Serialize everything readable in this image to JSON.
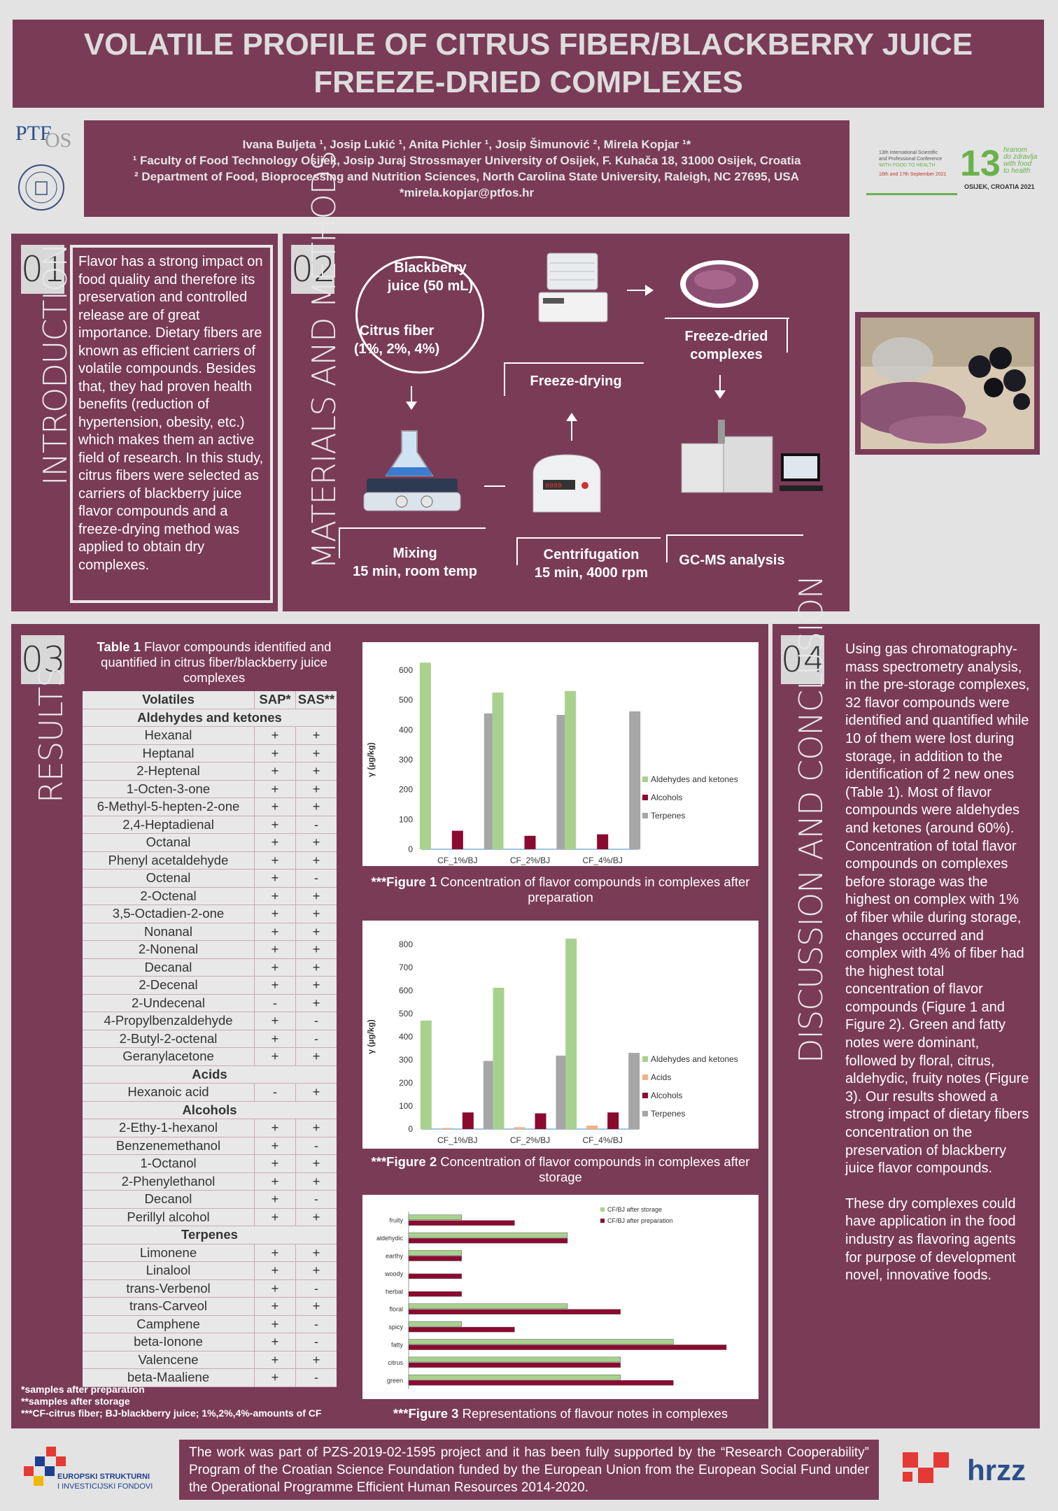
{
  "title": {
    "line1": "VOLATILE PROFILE OF CITRUS FIBER/BLACKBERRY JUICE",
    "line2": "FREEZE-DRIED COMPLEXES"
  },
  "authors": {
    "names": "Ivana Buljeta ¹, Josip Lukić ¹, Anita Pichler ¹, Josip Šimunović ², Mirela Kopjar ¹*",
    "aff1": "¹ Faculty of Food Technology Osijek, Josip Juraj Strossmayer University of Osijek, F. Kuhača 18, 31000 Osijek, Croatia",
    "aff2": "² Department of Food, Bioprocessing and Nutrition Sciences, North Carolina State University, Raleigh, NC 27695, USA",
    "email": "*mirela.kopjar@ptfos.hr"
  },
  "logos": {
    "ptf": "PTF",
    "ptf_os": "OS",
    "conf_line1": "13th International Scientific",
    "conf_line2": "and Professional Conference",
    "conf_line3": "WITH FOOD TO HEALTH",
    "conf_dates": "16th and 17th September 2021",
    "conf_num": "13",
    "conf_hr1": "hranom",
    "conf_hr2": "do zdravlja",
    "conf_en1": "with food",
    "conf_en2": "to health",
    "conf_place": "OSIJEK, CROATIA 2021",
    "eu_line1": "EUROPSKI STRUKTURNI",
    "eu_line2": "I INVESTICIJSKI FONDOVI",
    "hrzz": "hrzz"
  },
  "intro": {
    "num": "01",
    "heading": "INTRODUCTION",
    "text": "Flavor has a strong impact on food quality and therefore its preservation and controlled release are of great importance. Dietary fibers are known as efficient carriers of volatile compounds. Besides that, they had proven health benefits (reduction of hypertension, obesity, etc.) which makes them an active field of research. In this study, citrus fibers were selected as carriers of blackberry juice flavor compounds and a freeze-drying method was applied to obtain dry complexes."
  },
  "methods": {
    "num": "02",
    "heading": "MATERIALS AND METHODS",
    "juice": "Blackberry juice (50 mL)",
    "fiber": "Citrus fiber (1%, 2%, 4%)",
    "freeze": "Freeze-drying",
    "complexes": "Freeze-dried complexes",
    "mixing": "Mixing",
    "mixing2": "15 min, room temp",
    "centri": "Centrifugation",
    "centri2": "15 min, 4000 rpm",
    "gcms": "GC-MS analysis"
  },
  "results": {
    "num": "03",
    "heading": "RESULTS",
    "table_caption_bold": "Table 1",
    "table_caption": " Flavor compounds identified and quantified in citrus fiber/blackberry juice complexes",
    "col_volatiles": "Volatiles",
    "col_sap": "SAP*",
    "col_sas": "SAS**",
    "groups": [
      {
        "name": "Aldehydes and ketones",
        "rows": [
          [
            "Hexanal",
            "+",
            "+"
          ],
          [
            "Heptanal",
            "+",
            "+"
          ],
          [
            "2-Heptenal",
            "+",
            "+"
          ],
          [
            "1-Octen-3-one",
            "+",
            "+"
          ],
          [
            "6-Methyl-5-hepten-2-one",
            "+",
            "+"
          ],
          [
            "2,4-Heptadienal",
            "+",
            "-"
          ],
          [
            "Octanal",
            "+",
            "+"
          ],
          [
            "Phenyl acetaldehyde",
            "+",
            "+"
          ],
          [
            "Octenal",
            "+",
            "-"
          ],
          [
            "2-Octenal",
            "+",
            "+"
          ],
          [
            "3,5-Octadien-2-one",
            "+",
            "+"
          ],
          [
            "Nonanal",
            "+",
            "+"
          ],
          [
            "2-Nonenal",
            "+",
            "+"
          ],
          [
            "Decanal",
            "+",
            "+"
          ],
          [
            "2-Decenal",
            "+",
            "+"
          ],
          [
            "2-Undecenal",
            "-",
            "+"
          ],
          [
            "4-Propylbenzaldehyde",
            "+",
            "-"
          ],
          [
            "2-Butyl-2-octenal",
            "+",
            "-"
          ],
          [
            "Geranylacetone",
            "+",
            "+"
          ]
        ]
      },
      {
        "name": "Acids",
        "rows": [
          [
            "Hexanoic acid",
            "-",
            "+"
          ]
        ]
      },
      {
        "name": "Alcohols",
        "rows": [
          [
            "2-Ethy-1-hexanol",
            "+",
            "+"
          ],
          [
            "Benzenemethanol",
            "+",
            "-"
          ],
          [
            "1-Octanol",
            "+",
            "+"
          ],
          [
            "2-Phenylethanol",
            "+",
            "+"
          ],
          [
            "Decanol",
            "+",
            "-"
          ],
          [
            "Perillyl alcohol",
            "+",
            "+"
          ]
        ]
      },
      {
        "name": "Terpenes",
        "rows": [
          [
            "Limonene",
            "+",
            "+"
          ],
          [
            "Linalool",
            "+",
            "+"
          ],
          [
            "trans-Verbenol",
            "+",
            "-"
          ],
          [
            "trans-Carveol",
            "+",
            "+"
          ],
          [
            "Camphene",
            "+",
            "-"
          ],
          [
            "beta-Ionone",
            "+",
            "-"
          ],
          [
            "Valencene",
            "+",
            "+"
          ],
          [
            "beta-Maaliene",
            "+",
            "-"
          ]
        ]
      }
    ],
    "foot1": "*samples after preparation",
    "foot2": "**samples after storage",
    "foot3": "***CF-citrus fiber; BJ-blackberry juice; 1%,2%,4%-amounts of CF",
    "fig1_bold": "***Figure 1",
    "fig1_cap": " Concentration of flavor compounds in complexes after preparation",
    "fig2_bold": "***Figure 2",
    "fig2_cap": " Concentration of flavor compounds in complexes after storage",
    "fig3_bold": "***Figure 3",
    "fig3_cap": " Representations of flavour notes in complexes"
  },
  "chart_data": [
    {
      "type": "bar",
      "categories": [
        "CF_1%/BJ",
        "CF_2%/BJ",
        "CF_4%/BJ"
      ],
      "series": [
        {
          "name": "Aldehydes and ketones",
          "values": [
            625,
            525,
            530
          ],
          "color": "#a9d18e"
        },
        {
          "name": "Alcohols",
          "values": [
            62,
            45,
            50
          ],
          "color": "#8b0a2f"
        },
        {
          "name": "Terpenes",
          "values": [
            455,
            450,
            462
          ],
          "color": "#a6a6a6"
        }
      ],
      "ylabel": "γ (µg/kg)",
      "ylim": [
        0,
        600
      ],
      "yticks": [
        "0",
        "100",
        "200",
        "300",
        "400",
        "500",
        "600"
      ],
      "legend": "right"
    },
    {
      "type": "bar",
      "categories": [
        "CF_1%/BJ",
        "CF_2%/BJ",
        "CF_4%/BJ"
      ],
      "series": [
        {
          "name": "Aldehydes and ketones",
          "values": [
            470,
            612,
            825
          ],
          "color": "#a9d18e"
        },
        {
          "name": "Acids",
          "values": [
            5,
            8,
            15
          ],
          "color": "#f4b183"
        },
        {
          "name": "Alcohols",
          "values": [
            72,
            68,
            72
          ],
          "color": "#8b0a2f"
        },
        {
          "name": "Terpenes",
          "values": [
            295,
            318,
            330
          ],
          "color": "#a6a6a6"
        }
      ],
      "ylabel": "γ (µg/kg)",
      "ylim": [
        0,
        800
      ],
      "yticks": [
        "0",
        "100",
        "200",
        "300",
        "400",
        "500",
        "600",
        "700",
        "800"
      ],
      "legend": "right"
    },
    {
      "type": "bar",
      "orientation": "horizontal",
      "categories": [
        "fruity",
        "aldehydic",
        "earthy",
        "woody",
        "herbal",
        "floral",
        "spicy",
        "fatty",
        "citrus",
        "green"
      ],
      "series": [
        {
          "name": "CF/BJ after storage",
          "values": [
            1,
            3,
            1,
            0,
            0,
            3,
            1,
            5,
            4,
            4
          ],
          "color": "#a9d18e"
        },
        {
          "name": "CF/BJ after preparation",
          "values": [
            2,
            3,
            1,
            1,
            1,
            4,
            2,
            6,
            4,
            5
          ],
          "color": "#8b0a2f"
        }
      ],
      "legend": "top-right"
    }
  ],
  "discussion": {
    "num": "04",
    "heading": "DISCUSSION AND CONCLUSION",
    "text1": "Using gas chromatography-mass spectrometry analysis, in the pre-storage complexes, 32 flavor compounds were identified and quantified while 10 of them were lost during storage, in addition to the identification of 2 new ones (Table 1). Most of flavor compounds were aldehydes and ketones (around 60%). Concentration of total flavor compounds on complexes before storage was the highest on complex with 1% of fiber while during storage, changes occurred and complex with 4% of fiber had the highest total concentration of flavor compounds (Figure 1 and Figure 2). Green and fatty notes were dominant, followed by floral, citrus, aldehydic, fruity notes (Figure 3). Our results showed a strong impact of dietary fibers concentration on the preservation of blackberry juice flavor compounds.",
    "text2": "These dry complexes could have application in the food industry as flavoring agents for purpose of development novel, innovative foods."
  },
  "footer": {
    "text": "The work was part of PZS-2019-02-1595 project and it has been fully supported by the “Research Cooperability” Program of the Croatian Science Foundation funded by the European Union from the European Social Fund under the Operational Programme Efficient Human Resources 2014-2020."
  }
}
